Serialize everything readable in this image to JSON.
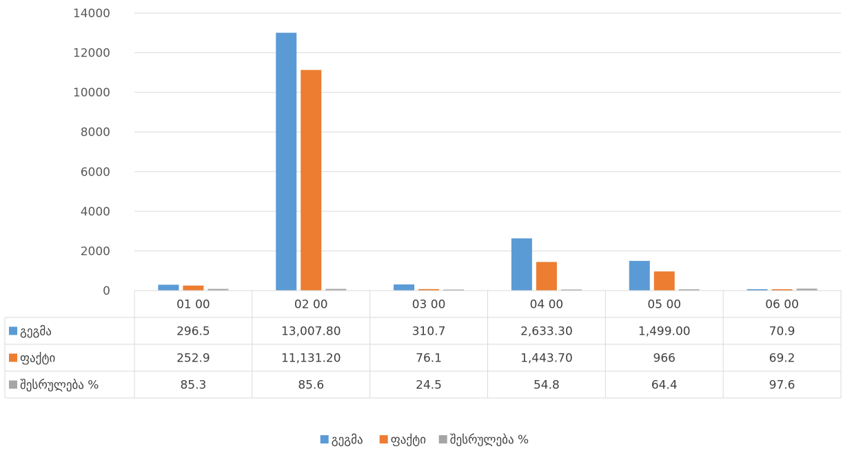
{
  "chart_data": {
    "type": "bar",
    "categories": [
      "01 00",
      "02 00",
      "03 00",
      "04 00",
      "05 00",
      "06 00"
    ],
    "series": [
      {
        "name": "გეგმა",
        "color": "#5B9BD5",
        "values": [
          296.5,
          13007.8,
          310.7,
          2633.3,
          1499.0,
          70.9
        ],
        "labels": [
          "296.5",
          "13,007.80",
          "310.7",
          "2,633.30",
          "1,499.00",
          "70.9"
        ]
      },
      {
        "name": "ფაქტი",
        "color": "#ED7D31",
        "values": [
          252.9,
          11131.2,
          76.1,
          1443.7,
          966,
          69.2
        ],
        "labels": [
          "252.9",
          "11,131.20",
          "76.1",
          "1,443.70",
          "966",
          "69.2"
        ]
      },
      {
        "name": "შესრულება %",
        "color": "#A5A5A5",
        "values": [
          85.3,
          85.6,
          24.5,
          54.8,
          64.4,
          97.6
        ],
        "labels": [
          "85.3",
          "85.6",
          "24.5",
          "54.8",
          "64.4",
          "97.6"
        ]
      }
    ],
    "ylim": [
      0,
      14000
    ],
    "yticks": [
      "0",
      "2000",
      "4000",
      "6000",
      "8000",
      "10000",
      "12000",
      "14000"
    ],
    "grid": true,
    "data_table": true,
    "legend": "bottom"
  }
}
